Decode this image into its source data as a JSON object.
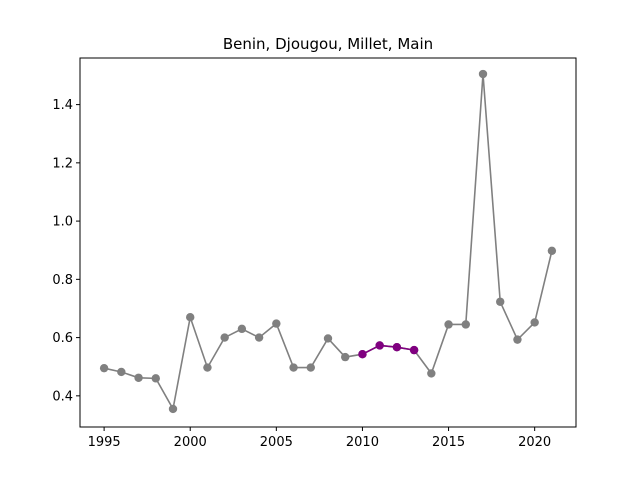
{
  "chart_data": {
    "type": "line",
    "title": "Benin, Djougou, Millet, Main",
    "xlabel": "",
    "ylabel": "",
    "xlim": [
      1993.6,
      2022.4
    ],
    "ylim": [
      0.293,
      1.56
    ],
    "grid": false,
    "xticks": [
      1995,
      2000,
      2005,
      2010,
      2015,
      2020
    ],
    "yticks": [
      0.4,
      0.6,
      0.8,
      1.0,
      1.2,
      1.4
    ],
    "xtick_labels": [
      "1995",
      "2000",
      "2005",
      "2010",
      "2015",
      "2020"
    ],
    "ytick_labels": [
      "0.4",
      "0.6",
      "0.8",
      "1.0",
      "1.2",
      "1.4"
    ],
    "series": [
      {
        "color": "#808080",
        "x": [
          1995,
          1996,
          1997,
          1998,
          1999,
          2000,
          2001,
          2002,
          2003,
          2004,
          2005,
          2006,
          2007,
          2008,
          2009,
          2010,
          2011,
          2012,
          2013,
          2014,
          2015,
          2016,
          2017,
          2018,
          2019,
          2020,
          2021
        ],
        "y": [
          0.495,
          0.482,
          0.462,
          0.46,
          0.355,
          0.67,
          0.497,
          0.6,
          0.63,
          0.6,
          0.648,
          0.497,
          0.497,
          0.597,
          0.533,
          0.543,
          0.573,
          0.567,
          0.557,
          0.477,
          0.645,
          0.645,
          1.505,
          0.723,
          0.593,
          0.652,
          0.898
        ]
      },
      {
        "color": "#800080",
        "x": [
          2010,
          2011,
          2012,
          2013
        ],
        "y": [
          0.543,
          0.573,
          0.567,
          0.557
        ]
      }
    ]
  }
}
